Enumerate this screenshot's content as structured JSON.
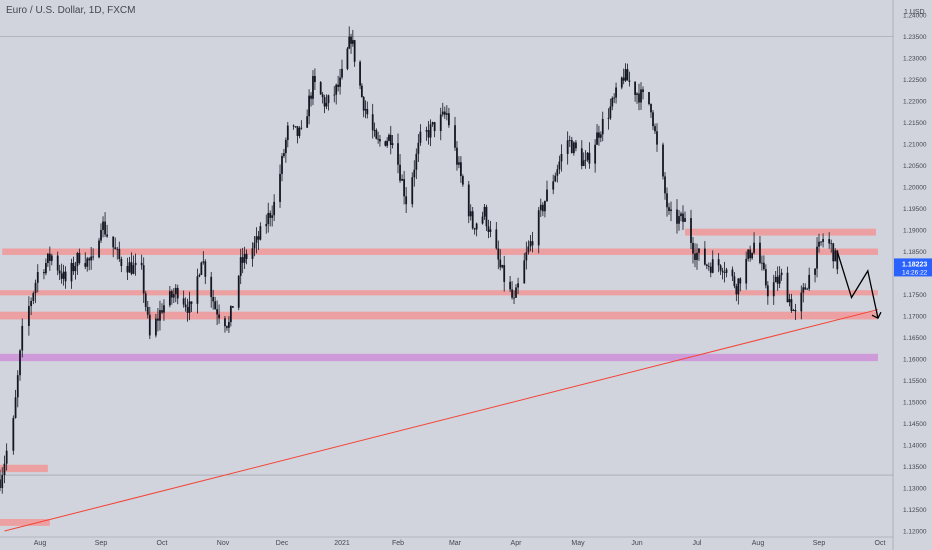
{
  "chart_data": {
    "type": "candlestick",
    "title": "Euro / U.S. Dollar, 1D, FXCM",
    "currency_label": "USD",
    "ylim": [
      1.12,
      1.245
    ],
    "y_ticks": [
      "1.12000",
      "1.12500",
      "1.13000",
      "1.13500",
      "1.14000",
      "1.14500",
      "1.15000",
      "1.15500",
      "1.16000",
      "1.16500",
      "1.17000",
      "1.17500",
      "1.18000",
      "1.18500",
      "1.19000",
      "1.19500",
      "1.20000",
      "1.20500",
      "1.21000",
      "1.21500",
      "1.22000",
      "1.22500",
      "1.23000",
      "1.23500",
      "1.24000"
    ],
    "x_ticks": [
      {
        "label": "Aug",
        "date": "2020-08-01"
      },
      {
        "label": "Sep",
        "date": "2020-09-01"
      },
      {
        "label": "Oct",
        "date": "2020-10-01"
      },
      {
        "label": "Nov",
        "date": "2020-11-01"
      },
      {
        "label": "Dec",
        "date": "2020-12-01"
      },
      {
        "label": "2021",
        "date": "2021-01-01"
      },
      {
        "label": "Feb",
        "date": "2021-02-01"
      },
      {
        "label": "Mar",
        "date": "2021-03-01"
      },
      {
        "label": "Apr",
        "date": "2021-04-01"
      },
      {
        "label": "May",
        "date": "2021-05-01"
      },
      {
        "label": "Jun",
        "date": "2021-06-01"
      },
      {
        "label": "Jul",
        "date": "2021-07-01"
      },
      {
        "label": "Aug",
        "date": "2021-08-01"
      },
      {
        "label": "Sep",
        "date": "2021-09-01"
      },
      {
        "label": "Oct",
        "date": "2021-10-01"
      }
    ],
    "price_path": [
      [
        "2020-07-14",
        1.132
      ],
      [
        "2020-07-20",
        1.145
      ],
      [
        "2020-07-24",
        1.166
      ],
      [
        "2020-07-31",
        1.18
      ],
      [
        "2020-08-07",
        1.184
      ],
      [
        "2020-08-14",
        1.178
      ],
      [
        "2020-08-21",
        1.184
      ],
      [
        "2020-08-28",
        1.182
      ],
      [
        "2020-09-01",
        1.192
      ],
      [
        "2020-09-10",
        1.183
      ],
      [
        "2020-09-21",
        1.18
      ],
      [
        "2020-09-25",
        1.165
      ],
      [
        "2020-10-01",
        1.172
      ],
      [
        "2020-10-09",
        1.176
      ],
      [
        "2020-10-16",
        1.171
      ],
      [
        "2020-10-21",
        1.184
      ],
      [
        "2020-10-28",
        1.172
      ],
      [
        "2020-11-04",
        1.168
      ],
      [
        "2020-11-10",
        1.182
      ],
      [
        "2020-11-18",
        1.187
      ],
      [
        "2020-11-27",
        1.196
      ],
      [
        "2020-12-04",
        1.213
      ],
      [
        "2020-12-11",
        1.212
      ],
      [
        "2020-12-17",
        1.224
      ],
      [
        "2020-12-24",
        1.219
      ],
      [
        "2020-12-31",
        1.224
      ],
      [
        "2021-01-06",
        1.235
      ],
      [
        "2021-01-12",
        1.221
      ],
      [
        "2021-01-20",
        1.21
      ],
      [
        "2021-01-29",
        1.212
      ],
      [
        "2021-02-05",
        1.197
      ],
      [
        "2021-02-12",
        1.211
      ],
      [
        "2021-02-25",
        1.217
      ],
      [
        "2021-03-03",
        1.204
      ],
      [
        "2021-03-10",
        1.191
      ],
      [
        "2021-03-16",
        1.194
      ],
      [
        "2021-03-24",
        1.181
      ],
      [
        "2021-03-31",
        1.173
      ],
      [
        "2021-04-06",
        1.184
      ],
      [
        "2021-04-15",
        1.197
      ],
      [
        "2021-04-26",
        1.211
      ],
      [
        "2021-05-05",
        1.205
      ],
      [
        "2021-05-12",
        1.213
      ],
      [
        "2021-05-20",
        1.22
      ],
      [
        "2021-05-25",
        1.226
      ],
      [
        "2021-06-01",
        1.222
      ],
      [
        "2021-06-08",
        1.219
      ],
      [
        "2021-06-11",
        1.209
      ],
      [
        "2021-06-17",
        1.193
      ],
      [
        "2021-06-25",
        1.192
      ],
      [
        "2021-06-30",
        1.185
      ],
      [
        "2021-07-06",
        1.182
      ],
      [
        "2021-07-14",
        1.182
      ],
      [
        "2021-07-21",
        1.177
      ],
      [
        "2021-07-30",
        1.187
      ],
      [
        "2021-08-06",
        1.176
      ],
      [
        "2021-08-13",
        1.179
      ],
      [
        "2021-08-20",
        1.17
      ],
      [
        "2021-08-26",
        1.178
      ],
      [
        "2021-09-03",
        1.188
      ],
      [
        "2021-09-07",
        1.186
      ],
      [
        "2021-09-10",
        1.182
      ]
    ],
    "current_price": "1.18223",
    "countdown": "14:26:22",
    "zones": [
      {
        "y_low": 1.1842,
        "y_high": 1.1857,
        "date_start": "2020-07-15",
        "date_end": "2021-09-30",
        "color": "#ef9a9a"
      },
      {
        "y_low": 1.1887,
        "y_high": 1.1903,
        "date_start": "2021-06-25",
        "date_end": "2021-09-29",
        "color": "#ef9a9a"
      },
      {
        "y_low": 1.1748,
        "y_high": 1.176,
        "date_start": "2020-07-14",
        "date_end": "2021-09-30",
        "color": "#ef9a9a"
      },
      {
        "y_low": 1.1692,
        "y_high": 1.171,
        "date_start": "2020-07-14",
        "date_end": "2021-09-30",
        "color": "#ef9a9a"
      },
      {
        "y_low": 1.1595,
        "y_high": 1.1612,
        "date_start": "2020-07-14",
        "date_end": "2021-09-30",
        "color": "#ce93d8"
      },
      {
        "y_low": 1.1337,
        "y_high": 1.1354,
        "date_start": "2020-07-14",
        "date_end": "2020-08-05",
        "color": "#ef9a9a"
      },
      {
        "y_low": 1.1212,
        "y_high": 1.1228,
        "date_start": "2020-07-14",
        "date_end": "2020-08-06",
        "color": "#ef9a9a"
      }
    ],
    "trendline": {
      "from": [
        "2020-07-16",
        1.12
      ],
      "to": [
        "2021-09-30",
        1.1715
      ],
      "color": "#f44336"
    },
    "projection_path": [
      [
        "2021-09-10",
        1.185
      ],
      [
        "2021-09-17",
        1.1743
      ],
      [
        "2021-09-25",
        1.1805
      ],
      [
        "2021-09-30",
        1.1695
      ]
    ],
    "h_lines": [
      1.235,
      1.133
    ],
    "grid": false
  }
}
